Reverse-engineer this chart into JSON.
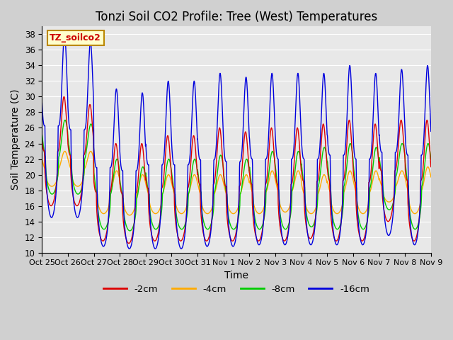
{
  "title": "Tonzi Soil CO2 Profile: Tree (West) Temperatures",
  "xlabel": "Time",
  "ylabel": "Soil Temperature (C)",
  "ylim": [
    10,
    39
  ],
  "yticks": [
    10,
    12,
    14,
    16,
    18,
    20,
    22,
    24,
    26,
    28,
    30,
    32,
    34,
    36,
    38
  ],
  "fig_bg": "#d0d0d0",
  "plot_bg": "#e8e8e8",
  "grid_color": "#ffffff",
  "legend_label": "TZ_soilco2",
  "legend_box_color": "#ffffcc",
  "legend_box_edge": "#bb8800",
  "series": [
    {
      "label": "-2cm",
      "color": "#dd0000"
    },
    {
      "label": "-4cm",
      "color": "#ffaa00"
    },
    {
      "label": "-8cm",
      "color": "#00cc00"
    },
    {
      "label": "-16cm",
      "color": "#0000dd"
    }
  ],
  "x_tick_labels": [
    "Oct 25",
    "Oct 26",
    "Oct 27",
    "Oct 28",
    "Oct 29",
    "Oct 30",
    "Oct 31",
    "Nov 1",
    "Nov 2",
    "Nov 3",
    "Nov 4",
    "Nov 5",
    "Nov 6",
    "Nov 7",
    "Nov 8",
    "Nov 9"
  ],
  "num_days": 15,
  "points_per_day": 96
}
